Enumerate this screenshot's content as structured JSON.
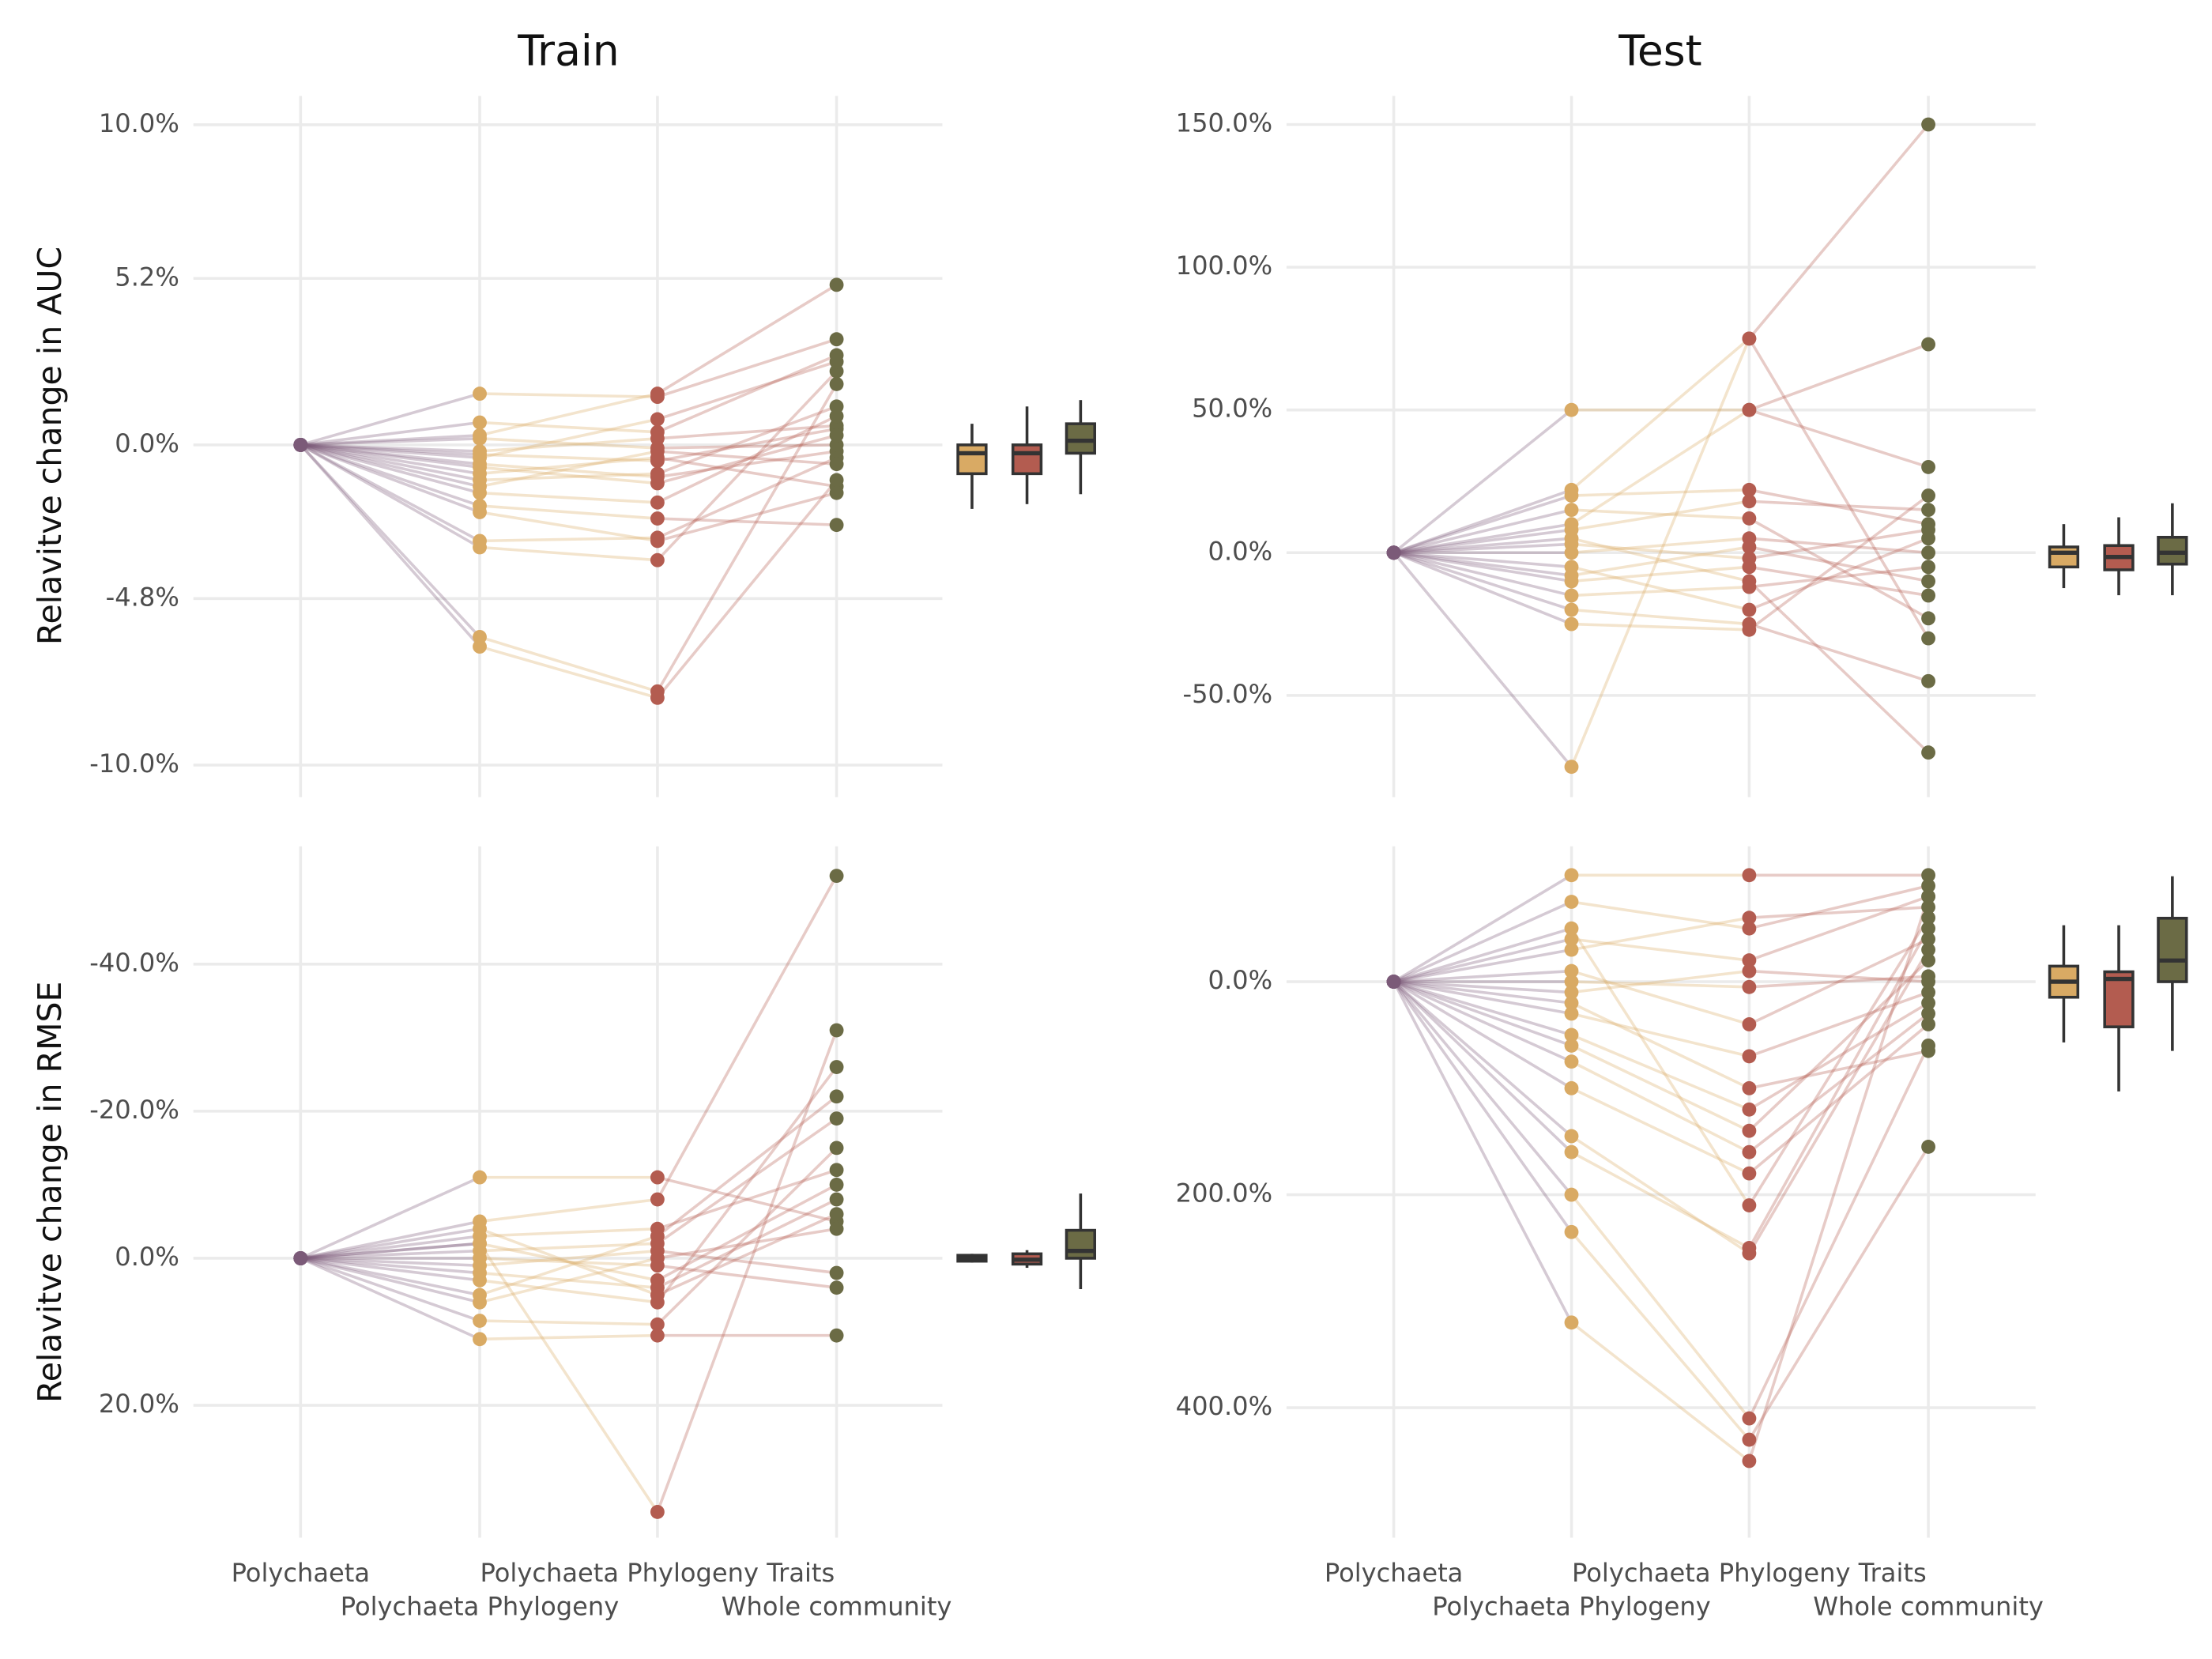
{
  "chart_data": [
    {
      "type": "parallel",
      "title": "Train",
      "y_label": "Relavitve change in AUC",
      "colors": [
        "#7b5a78",
        "#d9aa64",
        "#b35c50",
        "#6b6b45"
      ],
      "ylim": [
        -11,
        10.9
      ],
      "yticks": [
        {
          "value": 10,
          "label": "10.0%"
        },
        {
          "value": 5.2,
          "label": "5.2%"
        },
        {
          "value": 0,
          "label": "0.0%"
        },
        {
          "value": -4.8,
          "label": "-4.8%"
        },
        {
          "value": -10,
          "label": "-10.0%"
        }
      ],
      "grid": true,
      "observations": [
        [
          0,
          1.6,
          1.5,
          3.3
        ],
        [
          0,
          0.7,
          0.4,
          2.8
        ],
        [
          0,
          0.3,
          1.6,
          5.0
        ],
        [
          0,
          -0.3,
          -0.5,
          0.5
        ],
        [
          0,
          -0.6,
          -1.0,
          -0.2
        ],
        [
          0,
          -1.1,
          -0.9,
          1.2
        ],
        [
          0,
          -0.2,
          0.2,
          0.6
        ],
        [
          0,
          -0.9,
          -0.4,
          -1.3
        ],
        [
          0,
          -1.5,
          -1.8,
          0.9
        ],
        [
          0,
          -3.0,
          -2.9,
          -0.4
        ],
        [
          0,
          -3.2,
          -3.6,
          2.3
        ],
        [
          0,
          -6.3,
          -7.9,
          -1.1
        ],
        [
          0,
          -6.0,
          -7.7,
          1.9
        ],
        [
          0,
          -0.4,
          0.8,
          2.6
        ],
        [
          0,
          -1.9,
          -2.3,
          -2.5
        ],
        [
          0,
          0.2,
          -0.1,
          0.0
        ],
        [
          0,
          -0.7,
          -1.2,
          0.3
        ],
        [
          0,
          -1.3,
          -0.2,
          -0.6
        ],
        [
          0,
          -2.1,
          -3.0,
          -1.5
        ]
      ],
      "boxes": [
        {
          "whisker_low": -2.0,
          "q1": -0.9,
          "median": -0.26,
          "q3": 0,
          "whisker_high": 0.66
        },
        {
          "whisker_low": -1.85,
          "q1": -0.9,
          "median": -0.26,
          "q3": 0,
          "whisker_high": 1.2
        },
        {
          "whisker_low": -1.54,
          "q1": -0.26,
          "median": 0.13,
          "q3": 0.66,
          "whisker_high": 1.4
        }
      ]
    },
    {
      "type": "parallel",
      "title": "Test",
      "colors": [
        "#7b5a78",
        "#d9aa64",
        "#b35c50",
        "#6b6b45"
      ],
      "ylim": [
        -85.6,
        160
      ],
      "yticks": [
        {
          "value": 150,
          "label": "150.0%"
        },
        {
          "value": 100,
          "label": "100.0%"
        },
        {
          "value": 50,
          "label": "50.0%"
        },
        {
          "value": 0,
          "label": "0.0%"
        },
        {
          "value": -50,
          "label": "-50.0%"
        }
      ],
      "grid": true,
      "observations": [
        [
          0,
          50,
          50,
          30
        ],
        [
          0,
          22,
          75,
          -30
        ],
        [
          0,
          -75,
          75,
          150
        ],
        [
          0,
          10,
          50,
          73
        ],
        [
          0,
          20,
          22,
          10
        ],
        [
          0,
          -20,
          -25,
          -45
        ],
        [
          0,
          5,
          -10,
          -70
        ],
        [
          0,
          -25,
          -27,
          20
        ],
        [
          0,
          0,
          5,
          0
        ],
        [
          0,
          -10,
          -5,
          -15
        ],
        [
          0,
          15,
          12,
          -23
        ],
        [
          0,
          -5,
          -20,
          5
        ],
        [
          0,
          8,
          18,
          15
        ],
        [
          0,
          -15,
          -12,
          -5
        ],
        [
          0,
          3,
          -2,
          8
        ],
        [
          0,
          -8,
          2,
          -10
        ]
      ],
      "boxes": [
        {
          "whisker_low": -12.4,
          "q1": -5,
          "median": 0,
          "q3": 2,
          "whisker_high": 10
        },
        {
          "whisker_low": -14.9,
          "q1": -6,
          "median": -1.5,
          "q3": 2.5,
          "whisker_high": 12.4
        },
        {
          "whisker_low": -14.9,
          "q1": -4,
          "median": 0,
          "q3": 5.4,
          "whisker_high": 17.3
        }
      ]
    },
    {
      "type": "parallel",
      "y_label": "Relavitve change in RMSE",
      "categories": [
        "Polychaeta",
        "Polychaeta Phylogeny",
        "Polychaeta Phylogeny Traits",
        "Whole community"
      ],
      "colors": [
        "#7b5a78",
        "#d9aa64",
        "#b35c50",
        "#6b6b45"
      ],
      "ylim": [
        38,
        -56
      ],
      "yticks": [
        {
          "value": -40,
          "label": "-40.0%"
        },
        {
          "value": -20,
          "label": "-20.0%"
        },
        {
          "value": 0,
          "label": "0.0%"
        },
        {
          "value": 20,
          "label": "20.0%"
        }
      ],
      "grid": true,
      "observations": [
        [
          0,
          -11,
          -11,
          -5
        ],
        [
          0,
          -5,
          -8,
          -52
        ],
        [
          0,
          -2,
          34.5,
          -31
        ],
        [
          0,
          3,
          6,
          -26
        ],
        [
          0,
          5,
          -3,
          -22
        ],
        [
          0,
          -1,
          -2,
          -19
        ],
        [
          0,
          8.5,
          9,
          -15
        ],
        [
          0,
          11,
          10.5,
          10.5
        ],
        [
          0,
          -3,
          -4,
          -12
        ],
        [
          0,
          2,
          4,
          -8
        ],
        [
          0,
          0,
          1,
          4
        ],
        [
          0,
          -2,
          3,
          -10
        ],
        [
          0,
          6,
          0,
          -4
        ],
        [
          0,
          1,
          -1,
          2
        ],
        [
          0,
          -4,
          5,
          -6
        ]
      ],
      "boxes": [
        {
          "whisker_low": -0.6,
          "q1": -0.4,
          "median": 0,
          "q3": 0.4,
          "whisker_high": 0.6
        },
        {
          "whisker_low": -1.1,
          "q1": -0.6,
          "median": 0.2,
          "q3": 0.8,
          "whisker_high": 1.3
        },
        {
          "whisker_low": -8.8,
          "q1": -3.8,
          "median": -1,
          "q3": 0,
          "whisker_high": 4.2
        }
      ]
    },
    {
      "type": "parallel",
      "categories": [
        "Polychaeta",
        "Polychaeta Phylogeny",
        "Polychaeta Phylogeny Traits",
        "Whole community"
      ],
      "colors": [
        "#7b5a78",
        "#d9aa64",
        "#b35c50",
        "#6b6b45"
      ],
      "ylim": [
        522,
        -127
      ],
      "yticks": [
        {
          "value": 0,
          "label": "0.0%"
        },
        {
          "value": 200,
          "label": "200.0%"
        },
        {
          "value": 400,
          "label": "400.0%"
        }
      ],
      "grid": true,
      "observations": [
        [
          0,
          -100,
          -100,
          -100
        ],
        [
          0,
          -75,
          -50,
          -90
        ],
        [
          0,
          320,
          450,
          -80
        ],
        [
          0,
          235,
          430,
          155
        ],
        [
          0,
          200,
          410,
          60
        ],
        [
          0,
          160,
          250,
          -50
        ],
        [
          0,
          145,
          255,
          -30
        ],
        [
          0,
          -50,
          210,
          -60
        ],
        [
          0,
          100,
          180,
          40
        ],
        [
          0,
          60,
          140,
          -20
        ],
        [
          0,
          -30,
          -60,
          -70
        ],
        [
          0,
          20,
          100,
          65
        ],
        [
          0,
          -10,
          40,
          -40
        ],
        [
          0,
          30,
          70,
          10
        ],
        [
          0,
          0,
          5,
          -5
        ],
        [
          0,
          50,
          120,
          20
        ],
        [
          0,
          -40,
          -20,
          -80
        ],
        [
          0,
          75,
          160,
          30
        ],
        [
          0,
          10,
          -10,
          0
        ]
      ],
      "boxes": [
        {
          "whisker_low": -53,
          "q1": -14.6,
          "median": 0,
          "q3": 14.6,
          "whisker_high": 57
        },
        {
          "whisker_low": -53,
          "q1": -9.3,
          "median": -2.6,
          "q3": 42.4,
          "whisker_high": 103
        },
        {
          "whisker_low": -99,
          "q1": -59.6,
          "median": -19.9,
          "q3": 0,
          "whisker_high": 65
        }
      ]
    }
  ]
}
